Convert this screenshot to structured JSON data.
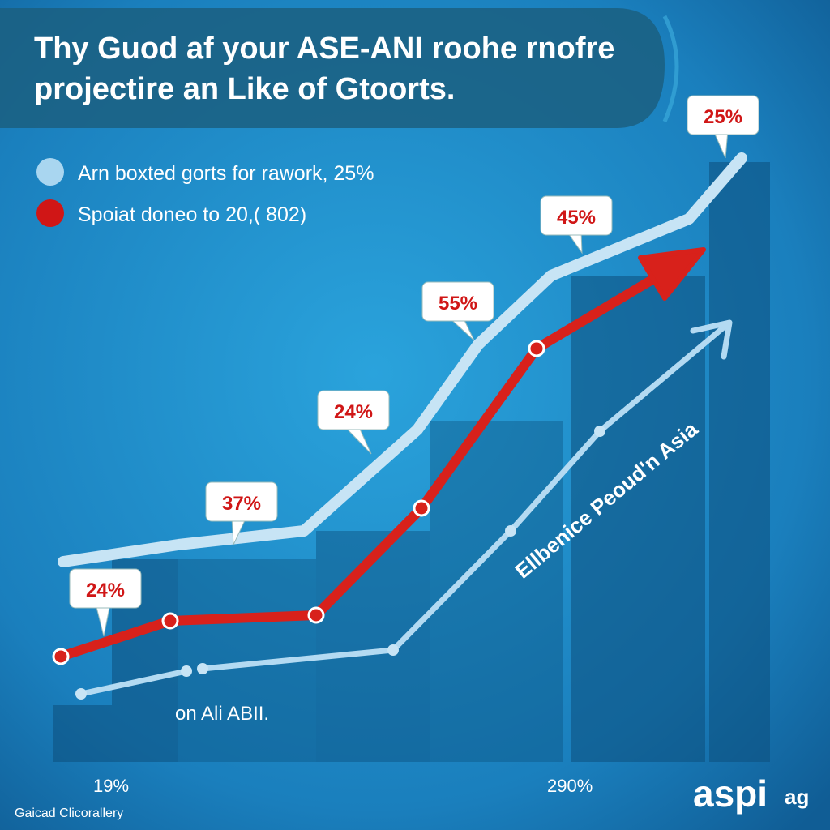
{
  "header": {
    "title_lines": [
      "Thy Guod af your ASE-ANI roohe rnofre",
      "projectire an Like of Gtoorts."
    ]
  },
  "legend": {
    "items": [
      {
        "label": "Arn boxted gorts for rawork, 25%"
      },
      {
        "label": "Spoiat doneo to 20,( 802)"
      }
    ]
  },
  "callouts": [
    "24%",
    "37%",
    "24%",
    "55%",
    "45%",
    "25%"
  ],
  "annotations": {
    "diagonal": "Ellbenice Peoud'n Asia",
    "lower": "on Ali ABII."
  },
  "bottom_labels": [
    "19%",
    "290%"
  ],
  "logo": {
    "main": "aspi",
    "suffix": "ag"
  },
  "footer": "Gaicad Clicorallery"
}
